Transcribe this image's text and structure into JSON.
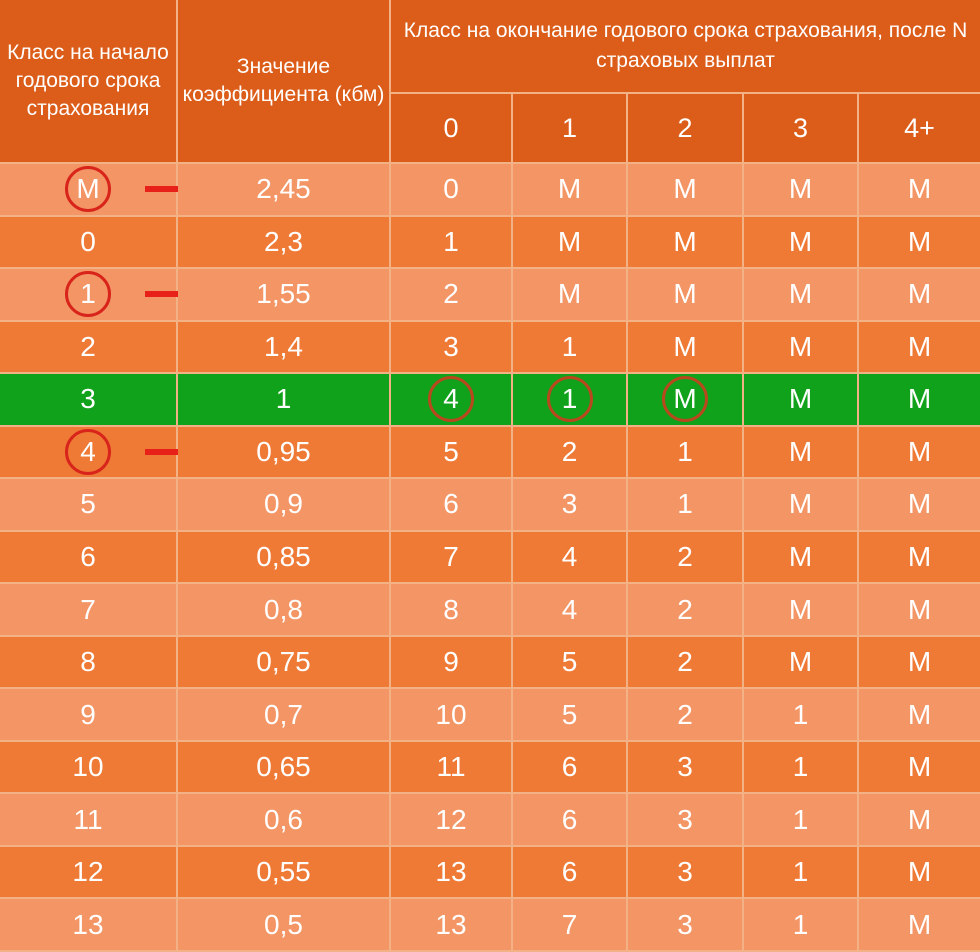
{
  "header": {
    "class_start": "Класс на начало годового срока страхования",
    "coef": "Значение коэффициента (кбм)",
    "class_end": "Класс на окончание годового срока страхования, после N страховых выплат",
    "payouts": [
      "0",
      "1",
      "2",
      "3",
      "4+"
    ]
  },
  "rows": [
    {
      "class": "М",
      "coef": "2,45",
      "cells": [
        "0",
        "М",
        "М",
        "М",
        "М"
      ]
    },
    {
      "class": "0",
      "coef": "2,3",
      "cells": [
        "1",
        "М",
        "М",
        "М",
        "М"
      ]
    },
    {
      "class": "1",
      "coef": "1,55",
      "cells": [
        "2",
        "М",
        "М",
        "М",
        "М"
      ]
    },
    {
      "class": "2",
      "coef": "1,4",
      "cells": [
        "3",
        "1",
        "М",
        "М",
        "М"
      ]
    },
    {
      "class": "3",
      "coef": "1",
      "cells": [
        "4",
        "1",
        "М",
        "М",
        "М"
      ]
    },
    {
      "class": "4",
      "coef": "0,95",
      "cells": [
        "5",
        "2",
        "1",
        "М",
        "М"
      ]
    },
    {
      "class": "5",
      "coef": "0,9",
      "cells": [
        "6",
        "3",
        "1",
        "М",
        "М"
      ]
    },
    {
      "class": "6",
      "coef": "0,85",
      "cells": [
        "7",
        "4",
        "2",
        "М",
        "М"
      ]
    },
    {
      "class": "7",
      "coef": "0,8",
      "cells": [
        "8",
        "4",
        "2",
        "М",
        "М"
      ]
    },
    {
      "class": "8",
      "coef": "0,75",
      "cells": [
        "9",
        "5",
        "2",
        "М",
        "М"
      ]
    },
    {
      "class": "9",
      "coef": "0,7",
      "cells": [
        "10",
        "5",
        "2",
        "1",
        "М"
      ]
    },
    {
      "class": "10",
      "coef": "0,65",
      "cells": [
        "11",
        "6",
        "3",
        "1",
        "М"
      ]
    },
    {
      "class": "11",
      "coef": "0,6",
      "cells": [
        "12",
        "6",
        "3",
        "1",
        "М"
      ]
    },
    {
      "class": "12",
      "coef": "0,55",
      "cells": [
        "13",
        "6",
        "3",
        "1",
        "М"
      ]
    },
    {
      "class": "13",
      "coef": "0,5",
      "cells": [
        "13",
        "7",
        "3",
        "1",
        "М"
      ]
    }
  ],
  "highlight": {
    "row_color": "#11a21c",
    "circle_color": "#d8241a",
    "arrow_color": "#e8201a"
  }
}
